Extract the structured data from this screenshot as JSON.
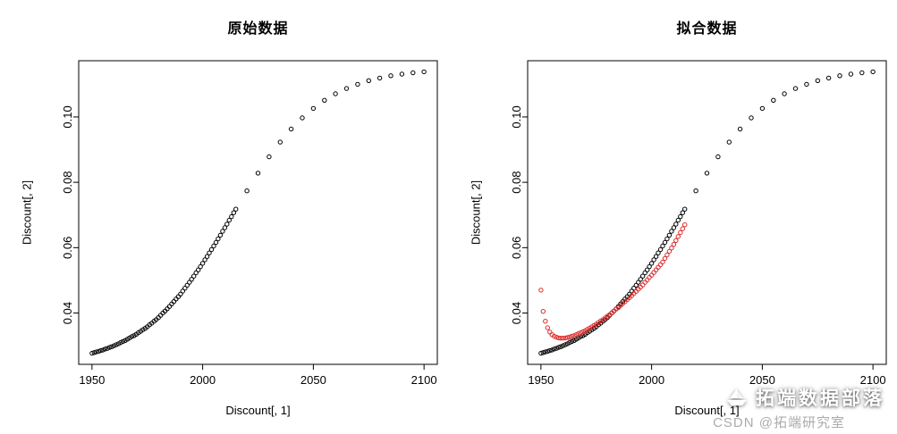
{
  "watermark": {
    "text": "拓端数据部落",
    "sub": "CSDN @拓端研究室",
    "icon": "paper-boat"
  },
  "colors": {
    "axis": "#000000",
    "original_series": "#000000",
    "fitted_series": "#dd2c2c",
    "background": "#ffffff"
  },
  "chart_data": [
    {
      "type": "scatter",
      "title": "原始数据",
      "xlabel": "Discount[, 1]",
      "ylabel": "Discount[, 2]",
      "xlim": [
        1944,
        2106
      ],
      "ylim": [
        0.0243,
        0.1172
      ],
      "xticks": [
        1950,
        2000,
        2050,
        2100
      ],
      "xticklabels": [
        "1950",
        "2000",
        "2050",
        "2100"
      ],
      "yticks": [
        0.04,
        0.06,
        0.08,
        0.1
      ],
      "yticklabels": [
        "0.04",
        "0.06",
        "0.08",
        "0.10"
      ],
      "grid": false,
      "legend": "none",
      "series": [
        {
          "name": "original-data",
          "marker": "open-circle",
          "color": "#000000",
          "points_ref": "black"
        }
      ]
    },
    {
      "type": "scatter",
      "title": "拟合数据",
      "xlabel": "Discount[, 1]",
      "ylabel": "Discount[, 2]",
      "xlim": [
        1944,
        2106
      ],
      "ylim": [
        0.0243,
        0.1172
      ],
      "xticks": [
        1950,
        2000,
        2050,
        2100
      ],
      "xticklabels": [
        "1950",
        "2000",
        "2050",
        "2100"
      ],
      "yticks": [
        0.04,
        0.06,
        0.08,
        0.1
      ],
      "yticklabels": [
        "0.04",
        "0.06",
        "0.08",
        "0.10"
      ],
      "grid": false,
      "legend": "none",
      "series": [
        {
          "name": "original-data",
          "marker": "open-circle",
          "color": "#000000",
          "points_ref": "black"
        },
        {
          "name": "fitted-data",
          "marker": "open-circle",
          "color": "#dd2c2c",
          "points_ref": "red"
        }
      ]
    }
  ],
  "points": {
    "black": {
      "x": [
        1950,
        1951,
        1952,
        1953,
        1954,
        1955,
        1956,
        1957,
        1958,
        1959,
        1960,
        1961,
        1962,
        1963,
        1964,
        1965,
        1966,
        1967,
        1968,
        1969,
        1970,
        1971,
        1972,
        1973,
        1974,
        1975,
        1976,
        1977,
        1978,
        1979,
        1980,
        1981,
        1982,
        1983,
        1984,
        1985,
        1986,
        1987,
        1988,
        1989,
        1990,
        1991,
        1992,
        1993,
        1994,
        1995,
        1996,
        1997,
        1998,
        1999,
        2000,
        2001,
        2002,
        2003,
        2004,
        2005,
        2006,
        2007,
        2008,
        2009,
        2010,
        2011,
        2012,
        2013,
        2014,
        2015,
        2020,
        2025,
        2030,
        2035,
        2040,
        2045,
        2050,
        2055,
        2060,
        2065,
        2070,
        2075,
        2080,
        2085,
        2090,
        2095,
        2100
      ],
      "y": [
        0.0277,
        0.0279,
        0.0281,
        0.0283,
        0.0285,
        0.0287,
        0.029,
        0.0292,
        0.0295,
        0.0297,
        0.03,
        0.0303,
        0.0306,
        0.031,
        0.0313,
        0.0316,
        0.032,
        0.0324,
        0.0328,
        0.0331,
        0.0335,
        0.034,
        0.0344,
        0.0349,
        0.0353,
        0.0358,
        0.0364,
        0.0369,
        0.0375,
        0.038,
        0.0386,
        0.0393,
        0.04,
        0.0406,
        0.0413,
        0.042,
        0.0428,
        0.0435,
        0.0443,
        0.045,
        0.0458,
        0.0467,
        0.0476,
        0.0485,
        0.0494,
        0.0503,
        0.0513,
        0.0523,
        0.0532,
        0.0542,
        0.0552,
        0.0563,
        0.0573,
        0.0584,
        0.0594,
        0.0605,
        0.0616,
        0.0627,
        0.0638,
        0.065,
        0.0661,
        0.0672,
        0.0684,
        0.0695,
        0.0707,
        0.0718,
        0.0774,
        0.0828,
        0.0878,
        0.0923,
        0.0963,
        0.0997,
        0.1026,
        0.1051,
        0.1071,
        0.1087,
        0.11,
        0.1111,
        0.1119,
        0.1126,
        0.1131,
        0.1135,
        0.1138
      ]
    },
    "red": {
      "x": [
        1950,
        1951,
        1952,
        1953,
        1954,
        1955,
        1956,
        1957,
        1958,
        1959,
        1960,
        1961,
        1962,
        1963,
        1964,
        1965,
        1966,
        1967,
        1968,
        1969,
        1970,
        1971,
        1972,
        1973,
        1974,
        1975,
        1976,
        1977,
        1978,
        1979,
        1980,
        1981,
        1982,
        1983,
        1984,
        1985,
        1986,
        1987,
        1988,
        1989,
        1990,
        1991,
        1992,
        1993,
        1994,
        1995,
        1996,
        1997,
        1998,
        1999,
        2000,
        2001,
        2002,
        2003,
        2004,
        2005,
        2006,
        2007,
        2008,
        2009,
        2010,
        2011,
        2012,
        2013,
        2014,
        2015
      ],
      "y": [
        0.047,
        0.0405,
        0.0375,
        0.0355,
        0.0342,
        0.0334,
        0.0329,
        0.0326,
        0.0324,
        0.0323,
        0.0323,
        0.0324,
        0.0325,
        0.0327,
        0.0329,
        0.0331,
        0.0334,
        0.0337,
        0.034,
        0.0343,
        0.0346,
        0.035,
        0.0354,
        0.0358,
        0.0362,
        0.0366,
        0.0371,
        0.0376,
        0.038,
        0.0385,
        0.039,
        0.0395,
        0.0401,
        0.0406,
        0.0412,
        0.0417,
        0.0423,
        0.0429,
        0.0435,
        0.0441,
        0.0447,
        0.0453,
        0.046,
        0.0466,
        0.0473,
        0.0479,
        0.0486,
        0.0494,
        0.0501,
        0.0509,
        0.0516,
        0.0524,
        0.0532,
        0.054,
        0.0548,
        0.0556,
        0.0567,
        0.0578,
        0.0589,
        0.0599,
        0.061,
        0.0622,
        0.0634,
        0.0646,
        0.0658,
        0.067
      ]
    }
  }
}
